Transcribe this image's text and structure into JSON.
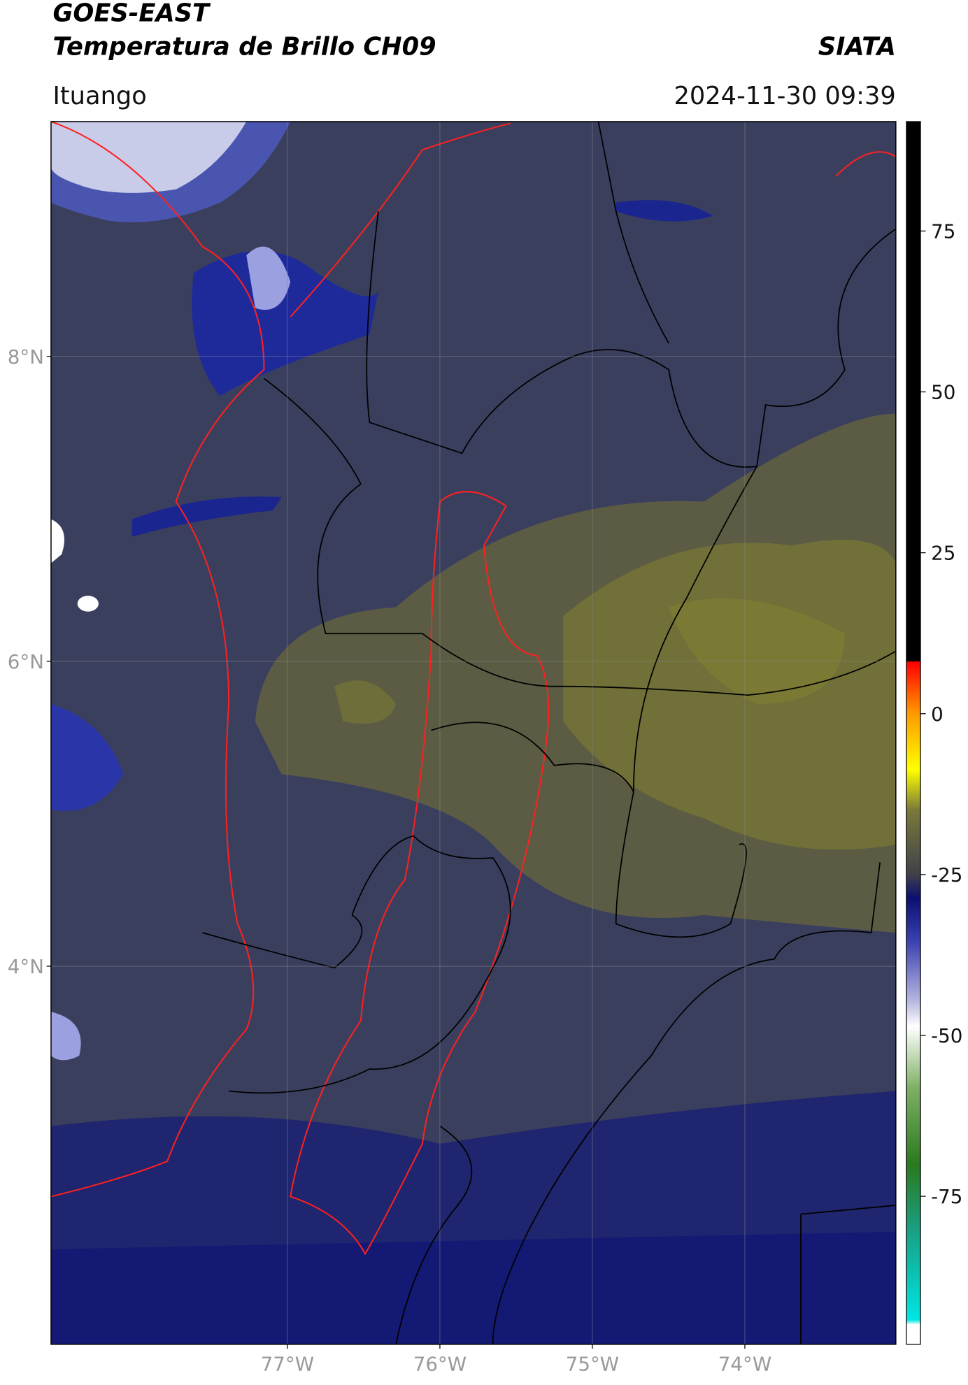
{
  "header": {
    "title": "GOES-EAST",
    "subtitle": "Temperatura de Brillo CH09",
    "source": "SIATA",
    "location": "Ituango",
    "datetime": "2024-11-30 09:39"
  },
  "map": {
    "type": "map",
    "xlim": [
      -78.55,
      -73.01
    ],
    "ylim": [
      1.52,
      9.54
    ],
    "xticks": [
      {
        "value": -77,
        "label": "77°W"
      },
      {
        "value": -76,
        "label": "76°W"
      },
      {
        "value": -75,
        "label": "75°W"
      },
      {
        "value": -74,
        "label": "74°W"
      }
    ],
    "yticks": [
      {
        "value": 4,
        "label": "4°N"
      },
      {
        "value": 6,
        "label": "6°N"
      },
      {
        "value": 8,
        "label": "8°N"
      }
    ],
    "grid": true
  },
  "colorbar": {
    "lim": [
      -98,
      92
    ],
    "ticks": [
      -75,
      -50,
      -25,
      0,
      25,
      50,
      75
    ]
  }
}
